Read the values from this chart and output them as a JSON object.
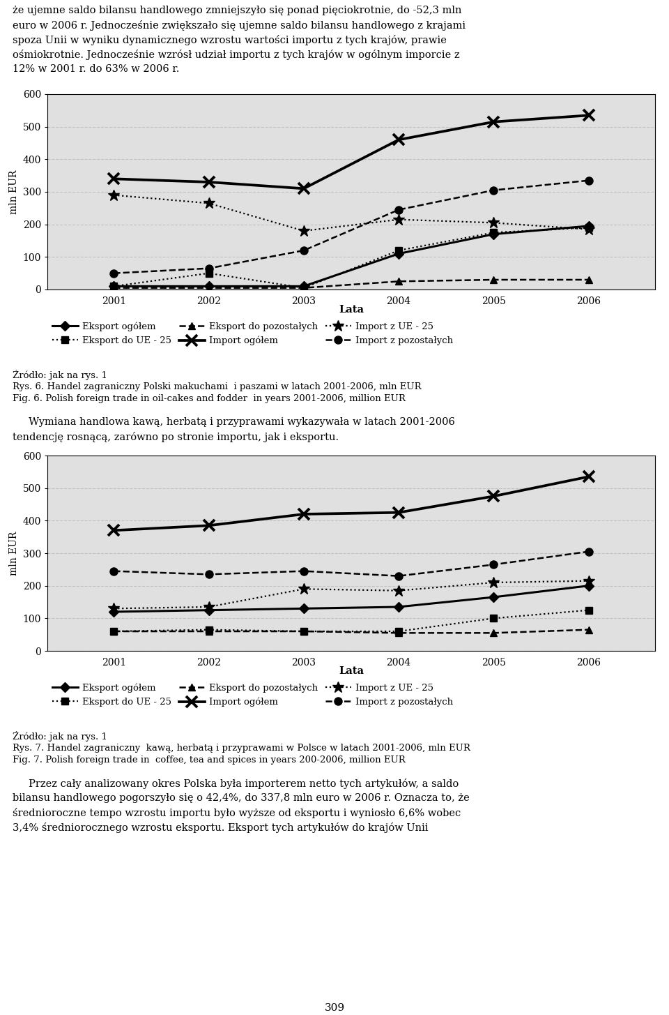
{
  "years": [
    2001,
    2002,
    2003,
    2004,
    2005,
    2006
  ],
  "chart1": {
    "eksport_ogol": [
      10,
      10,
      10,
      110,
      170,
      195
    ],
    "import_ogol": [
      340,
      330,
      310,
      460,
      515,
      535
    ],
    "eksport_ue25": [
      10,
      50,
      5,
      120,
      175,
      190
    ],
    "import_ue25": [
      290,
      265,
      180,
      215,
      205,
      185
    ],
    "eksport_pozost": [
      5,
      5,
      5,
      25,
      30,
      30
    ],
    "import_pozost": [
      50,
      65,
      120,
      245,
      305,
      335
    ]
  },
  "chart2": {
    "eksport_ogol": [
      120,
      125,
      130,
      135,
      165,
      200
    ],
    "import_ogol": [
      370,
      385,
      420,
      425,
      475,
      535
    ],
    "eksport_ue25": [
      60,
      65,
      60,
      60,
      100,
      125
    ],
    "import_ue25": [
      130,
      135,
      190,
      185,
      210,
      215
    ],
    "eksport_pozost": [
      60,
      60,
      60,
      55,
      55,
      65
    ],
    "import_pozost": [
      245,
      235,
      245,
      230,
      265,
      305
    ]
  },
  "text": {
    "intro_lines": [
      "że ujemne saldo bilansu handlowego zmniejszyło się ponad pięciokrotnie, do -52,3 mln",
      "euro w 2006 r. Jednocześnie zwiększało się ujemne saldo bilansu handlowego z krajami",
      "spoza Unii w wyniku dynamicznego wzrostu wartości importu z tych krajów, prawie",
      "ośmiokrotnie. Jednocześnie wzrósł udział importu z tych krajów w ogólnym imporcie z",
      "12% w 2001 r. do 63% w 2006 r."
    ],
    "between_lines": [
      "     Wymiana handlowa kawą, herbatą i przyprawami wykazywała w latach 2001-2006",
      "tendencję rosnącą, zarówno po stronie importu, jak i eksportu."
    ],
    "bottom_lines": [
      "     Przez cały analizowany okres Polska była importerem netto tych artykułów, a saldo",
      "bilansu handlowego pogorszyło się o 42,4%, do 337,8 mln euro w 2006 r. Oznacza to, że",
      "średnioroczne tempo wzrostu importu było wyższe od eksportu i wyniosło 6,6% wobec",
      "3,4% średniorocznego wzrostu eksportu. Eksport tych artykułów do krajów Unii"
    ],
    "ylabel": "mln EUR",
    "xlabel": "Lata",
    "source": "Źródło: jak na rys. 1",
    "caption1_pl": "Rys. 6. Handel zagraniczny Polski makuchami  i paszami w latach 2001-2006, mln EUR",
    "caption1_en": "Fig. 6. Polish foreign trade in oil-cakes and fodder  in years 2001-2006, million EUR",
    "caption2_pl": "Rys. 7. Handel zagraniczny  kawą, herbatą i przyprawami w Polsce w latach 2001-2006, mln EUR",
    "caption2_en": "Fig. 7. Polish foreign trade in  coffee, tea and spices in years 200-2006, million EUR",
    "page_number": "309",
    "legend": {
      "eksport_ogol": "Eksport ogółem",
      "import_ogol": "Import ogółem",
      "eksport_ue25": "Eksport do UE - 25",
      "import_ue25": "Import z UE - 25",
      "eksport_pozost": "Eksport do pozostałych",
      "import_pozost": "Import z pozostałych"
    }
  },
  "style": {
    "background": "#ffffff",
    "grid_color": "#c0c0c0",
    "plot_bg": "#e0e0e0",
    "ylim": [
      0,
      600
    ],
    "yticks": [
      0,
      100,
      200,
      300,
      400,
      500,
      600
    ]
  }
}
